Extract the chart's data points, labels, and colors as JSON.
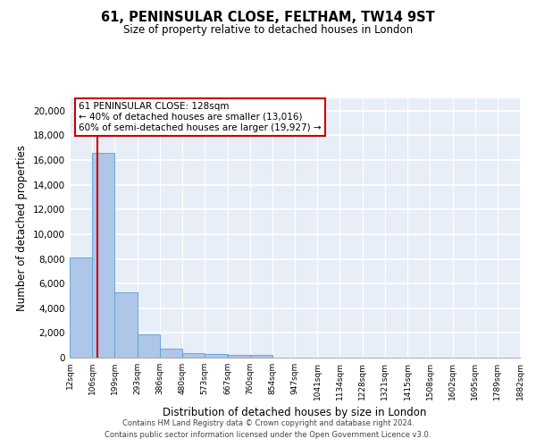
{
  "title1": "61, PENINSULAR CLOSE, FELTHAM, TW14 9ST",
  "title2": "Size of property relative to detached houses in London",
  "xlabel": "Distribution of detached houses by size in London",
  "ylabel": "Number of detached properties",
  "annotation_title": "61 PENINSULAR CLOSE: 128sqm",
  "annotation_line1": "← 40% of detached houses are smaller (13,016)",
  "annotation_line2": "60% of semi-detached houses are larger (19,927) →",
  "footer1": "Contains HM Land Registry data © Crown copyright and database right 2024.",
  "footer2": "Contains public sector information licensed under the Open Government Licence v3.0.",
  "property_size": 128,
  "bar_color": "#aec6e8",
  "bar_edge_color": "#5a9fd4",
  "vline_color": "#cc0000",
  "annotation_box_color": "#ffffff",
  "annotation_box_edge": "#cc0000",
  "background_color": "#e8eef8",
  "ylim": [
    0,
    21000
  ],
  "yticks": [
    0,
    2000,
    4000,
    6000,
    8000,
    10000,
    12000,
    14000,
    16000,
    18000,
    20000
  ],
  "bin_edges": [
    12,
    106,
    199,
    293,
    386,
    480,
    573,
    667,
    760,
    854,
    947,
    1041,
    1134,
    1228,
    1321,
    1415,
    1508,
    1602,
    1695,
    1789,
    1882
  ],
  "bin_labels": [
    "12sqm",
    "106sqm",
    "199sqm",
    "293sqm",
    "386sqm",
    "480sqm",
    "573sqm",
    "667sqm",
    "760sqm",
    "854sqm",
    "947sqm",
    "1041sqm",
    "1134sqm",
    "1228sqm",
    "1321sqm",
    "1415sqm",
    "1508sqm",
    "1602sqm",
    "1695sqm",
    "1789sqm",
    "1882sqm"
  ],
  "bar_heights": [
    8100,
    16600,
    5300,
    1850,
    700,
    350,
    270,
    210,
    195,
    0,
    0,
    0,
    0,
    0,
    0,
    0,
    0,
    0,
    0,
    0
  ]
}
